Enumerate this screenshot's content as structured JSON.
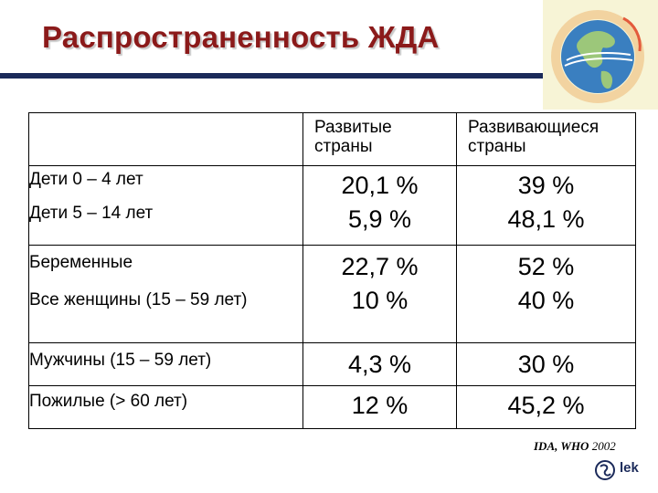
{
  "title": "Распространенность ЖДА",
  "columns": {
    "developed_line1": "Развитые",
    "developed_line2": "страны",
    "developing_line1": "Развивающиеся",
    "developing_line2": "страны"
  },
  "rows": [
    {
      "label": "Дети 0 – 4 лет",
      "developed": "20,1 %",
      "developing": "39 %"
    },
    {
      "label": "Дети 5 – 14 лет",
      "developed": "5,9 %",
      "developing": "48,1 %"
    },
    {
      "label": "Беременные",
      "developed": "22,7 %",
      "developing": "52 %"
    },
    {
      "label": "Все женщины (15 – 59 лет)",
      "developed": "10 %",
      "developing": "40 %"
    },
    {
      "label": "Мужчины  (15 – 59 лет)",
      "developed": "4,3 %",
      "developing": "30 %"
    },
    {
      "label": "Пожилые (> 60 лет)",
      "developed": "12 %",
      "developing": "45,2 %"
    }
  ],
  "source": {
    "bold": "IDA, WHO",
    "year": "2002"
  },
  "logo_text": "lek",
  "colors": {
    "title": "#8b1a1a",
    "rule": "#1b2a5a"
  }
}
